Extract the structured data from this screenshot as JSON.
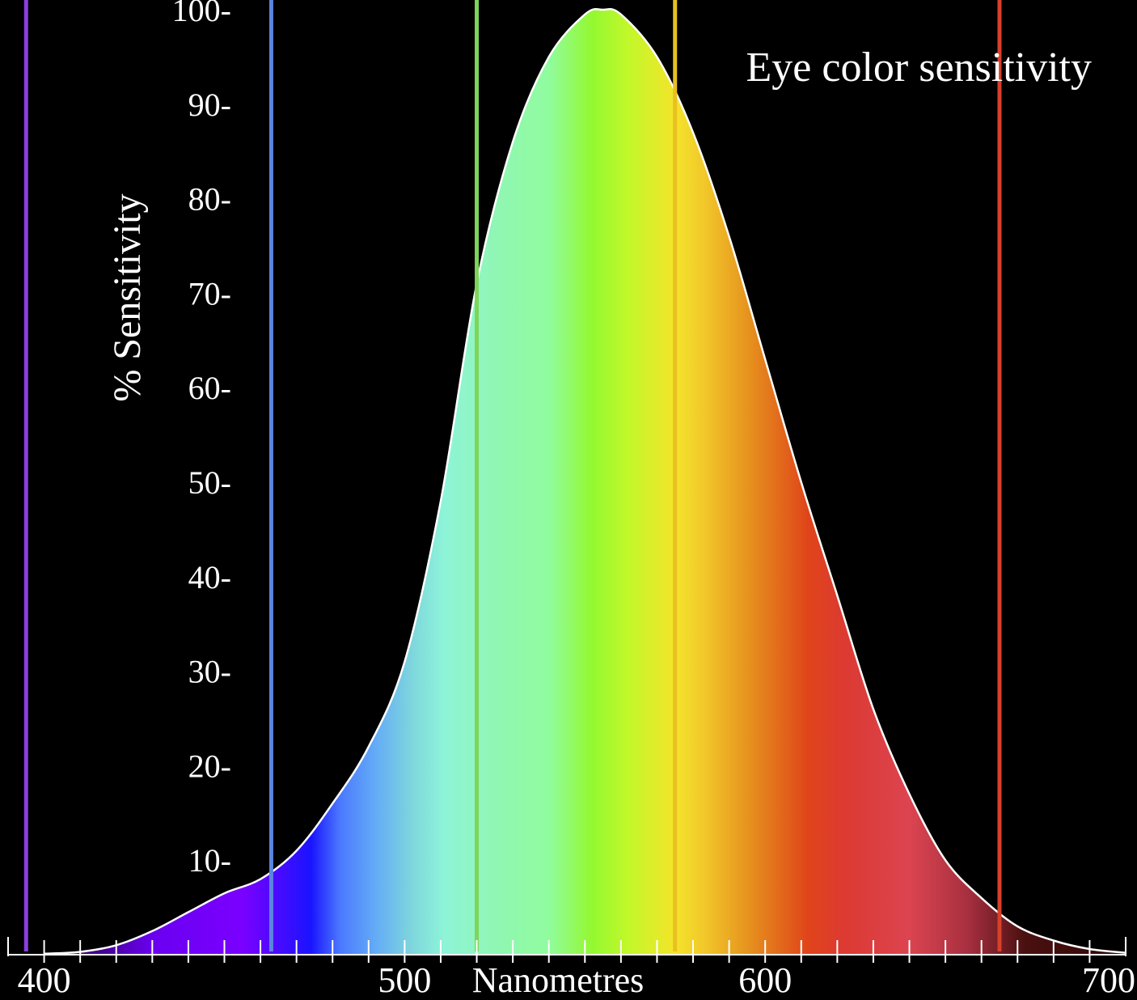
{
  "chart_data": {
    "type": "area",
    "title": "Eye color sensitivity",
    "xlabel": "Nanometres",
    "ylabel": "% Sensitivity",
    "xlim": [
      390,
      700
    ],
    "ylim": [
      0,
      100
    ],
    "x_ticks": [
      {
        "value": 400,
        "label": "400"
      },
      {
        "value": 500,
        "label": "500"
      },
      {
        "value": 600,
        "label": "600"
      },
      {
        "value": 700,
        "label": "700"
      }
    ],
    "x_minor_step": 10,
    "y_ticks": [
      {
        "value": 10,
        "label": "10-"
      },
      {
        "value": 20,
        "label": "20-"
      },
      {
        "value": 30,
        "label": "30-"
      },
      {
        "value": 40,
        "label": "40-"
      },
      {
        "value": 50,
        "label": "50-"
      },
      {
        "value": 60,
        "label": "60-"
      },
      {
        "value": 70,
        "label": "70-"
      },
      {
        "value": 80,
        "label": "80-"
      },
      {
        "value": 90,
        "label": "90-"
      },
      {
        "value": 100,
        "label": "100-"
      }
    ],
    "series": [
      {
        "x": [
          400,
          410,
          420,
          430,
          440,
          450,
          460,
          470,
          480,
          490,
          500,
          510,
          520,
          530,
          540,
          550,
          555,
          560,
          570,
          580,
          590,
          600,
          610,
          620,
          630,
          640,
          650,
          660,
          670,
          680,
          690,
          700
        ],
        "values": [
          0.1,
          0.3,
          1,
          2.5,
          4.5,
          6.5,
          8,
          11,
          16,
          22,
          31,
          48,
          71,
          86,
          95,
          99.5,
          100,
          99.5,
          95,
          87,
          76,
          63,
          50,
          38,
          26,
          17,
          10,
          6,
          3,
          1.5,
          0.6,
          0.2
        ]
      }
    ],
    "marker_lines": [
      {
        "x": 395,
        "color": "#8a3fe0"
      },
      {
        "x": 463,
        "color": "#5b86e0"
      },
      {
        "x": 520,
        "color": "#7fd45a"
      },
      {
        "x": 575,
        "color": "#e8c020"
      },
      {
        "x": 665,
        "color": "#d8402a"
      }
    ],
    "spectrum_stops": [
      {
        "x": 400,
        "color": "#1a0030"
      },
      {
        "x": 430,
        "color": "#6a00f0"
      },
      {
        "x": 455,
        "color": "#7a00ff"
      },
      {
        "x": 474,
        "color": "#1a14ff"
      },
      {
        "x": 482,
        "color": "#4a78ff"
      },
      {
        "x": 492,
        "color": "#64acf6"
      },
      {
        "x": 502,
        "color": "#7ed6dc"
      },
      {
        "x": 511,
        "color": "#8ef4d8"
      },
      {
        "x": 525,
        "color": "#90f6b4"
      },
      {
        "x": 540,
        "color": "#90fc9e"
      },
      {
        "x": 552,
        "color": "#94f830"
      },
      {
        "x": 562,
        "color": "#c2f82a"
      },
      {
        "x": 575,
        "color": "#f4e42a"
      },
      {
        "x": 583,
        "color": "#f2c82a"
      },
      {
        "x": 595,
        "color": "#e6941e"
      },
      {
        "x": 612,
        "color": "#e0441a"
      },
      {
        "x": 622,
        "color": "#dc3a32"
      },
      {
        "x": 640,
        "color": "#dc4450"
      },
      {
        "x": 656,
        "color": "#a83040"
      },
      {
        "x": 672,
        "color": "#4a1010"
      },
      {
        "x": 690,
        "color": "#3a0a0a"
      },
      {
        "x": 700,
        "color": "#1a0000"
      }
    ]
  }
}
